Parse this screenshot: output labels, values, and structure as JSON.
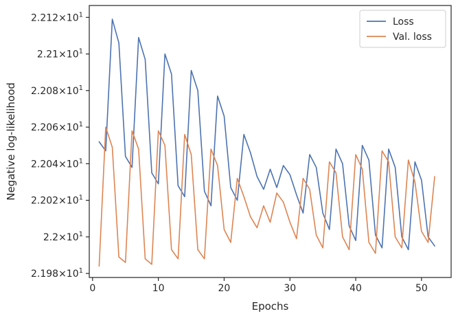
{
  "chart_data": {
    "type": "line",
    "title": "",
    "xlabel": "Epochs",
    "ylabel": "Negative log-likelihood",
    "xlim": [
      -0.5,
      54.5
    ],
    "ylim": [
      21.9778,
      22.1265
    ],
    "grid": false,
    "legend_position": "top-right",
    "x_ticks": [
      0,
      10,
      20,
      30,
      40,
      50
    ],
    "x_tick_labels": [
      "0",
      "10",
      "20",
      "30",
      "40",
      "50"
    ],
    "y_ticks": [
      21.98,
      22.0,
      22.02,
      22.04,
      22.06,
      22.08,
      22.1,
      22.12
    ],
    "y_tick_labels": [
      "2.198",
      "2.2",
      "2.202",
      "2.204",
      "2.206",
      "2.208",
      "2.21",
      "2.212"
    ],
    "y_tick_suffix": "×10",
    "y_tick_exponent": "1",
    "x": [
      1,
      2,
      3,
      4,
      5,
      6,
      7,
      8,
      9,
      10,
      11,
      12,
      13,
      14,
      15,
      16,
      17,
      18,
      19,
      20,
      21,
      22,
      23,
      24,
      25,
      26,
      27,
      28,
      29,
      30,
      31,
      32,
      33,
      34,
      35,
      36,
      37,
      38,
      39,
      40,
      41,
      42,
      43,
      44,
      45,
      46,
      47,
      48,
      49,
      50,
      51,
      52
    ],
    "series": [
      {
        "name": "Loss",
        "color": "#4c72b0",
        "values": [
          22.052,
          22.047,
          22.119,
          22.106,
          22.044,
          22.038,
          22.109,
          22.097,
          22.035,
          22.029,
          22.1,
          22.089,
          22.028,
          22.022,
          22.091,
          22.08,
          22.025,
          22.017,
          22.077,
          22.066,
          22.027,
          22.02,
          22.056,
          22.046,
          22.033,
          22.026,
          22.037,
          22.027,
          22.039,
          22.034,
          22.023,
          22.013,
          22.045,
          22.038,
          22.013,
          22.004,
          22.048,
          22.04,
          22.006,
          21.998,
          22.05,
          22.042,
          22.001,
          21.994,
          22.048,
          22.038,
          22.0,
          21.993,
          22.041,
          22.031,
          22.0,
          21.995
        ]
      },
      {
        "name": "Val. loss",
        "color": "#dd8452",
        "values": [
          21.984,
          22.06,
          22.049,
          21.989,
          21.986,
          22.058,
          22.048,
          21.988,
          21.985,
          22.058,
          22.05,
          21.993,
          21.988,
          22.056,
          22.045,
          21.993,
          21.988,
          22.048,
          22.039,
          22.004,
          21.997,
          22.032,
          22.022,
          22.011,
          22.005,
          22.017,
          22.008,
          22.024,
          22.019,
          22.008,
          21.999,
          22.032,
          22.026,
          22.001,
          21.994,
          22.041,
          22.035,
          22.0,
          21.993,
          22.045,
          22.037,
          21.997,
          21.991,
          22.047,
          22.041,
          22.0,
          21.994,
          22.042,
          22.03,
          22.003,
          21.997,
          22.033
        ]
      }
    ]
  }
}
